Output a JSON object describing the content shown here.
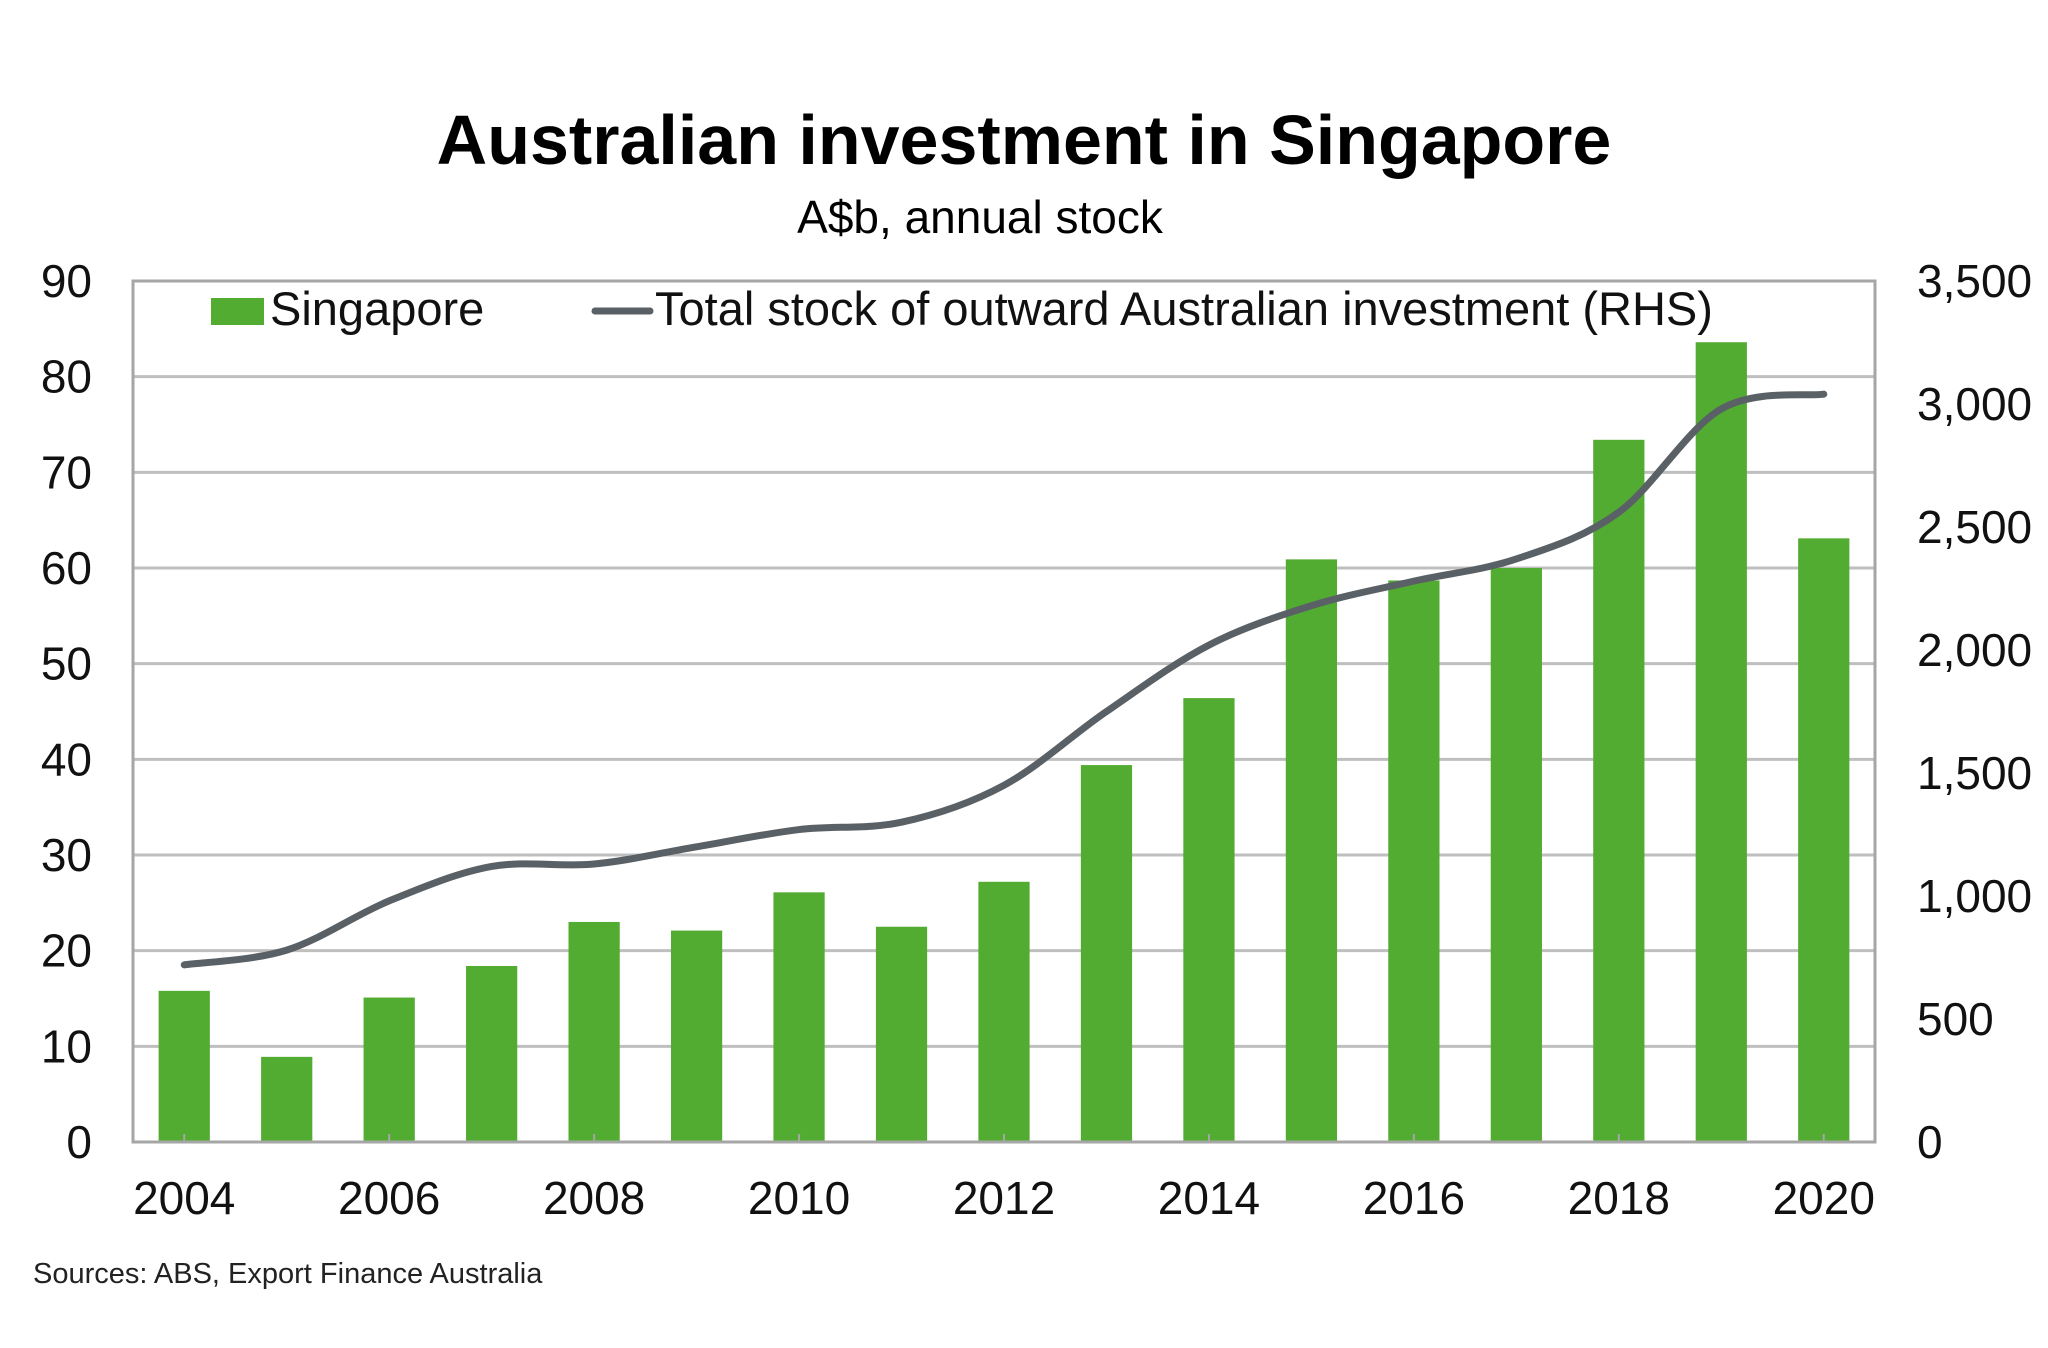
{
  "chart_data": {
    "type": "bar+line",
    "title": "Australian investment in Singapore",
    "subtitle": "A$b, annual stock",
    "source": "Sources: ABS, Export Finance Australia",
    "categories": [
      "2004",
      "2005",
      "2006",
      "2007",
      "2008",
      "2009",
      "2010",
      "2011",
      "2012",
      "2013",
      "2014",
      "2015",
      "2016",
      "2017",
      "2018",
      "2019",
      "2020"
    ],
    "x_tick_labels": [
      "2004",
      "2006",
      "2008",
      "2010",
      "2012",
      "2014",
      "2016",
      "2018",
      "2020"
    ],
    "series": [
      {
        "name": "Singapore",
        "type": "bar",
        "axis": "left",
        "color": "#52AC32",
        "values": [
          15.8,
          8.9,
          15.1,
          18.4,
          23.0,
          22.1,
          26.1,
          22.5,
          27.2,
          39.4,
          46.4,
          60.9,
          58.7,
          60.0,
          73.4,
          83.6,
          63.1
        ]
      },
      {
        "name": "Total stock of outward Australian investment (RHS)",
        "type": "line",
        "axis": "right",
        "color": "#5A6166",
        "values": [
          720,
          780,
          980,
          1120,
          1130,
          1200,
          1270,
          1300,
          1450,
          1750,
          2020,
          2180,
          2280,
          2370,
          2560,
          2980,
          3040
        ]
      }
    ],
    "y_left": {
      "min": 0,
      "max": 90,
      "ticks": [
        0,
        10,
        20,
        30,
        40,
        50,
        60,
        70,
        80,
        90
      ]
    },
    "y_right": {
      "min": 0,
      "max": 3500,
      "ticks": [
        "0",
        "500",
        "1,000",
        "1,500",
        "2,000",
        "2,500",
        "3,000",
        "3,500"
      ]
    },
    "grid": true,
    "legend_position": "top-inside"
  }
}
